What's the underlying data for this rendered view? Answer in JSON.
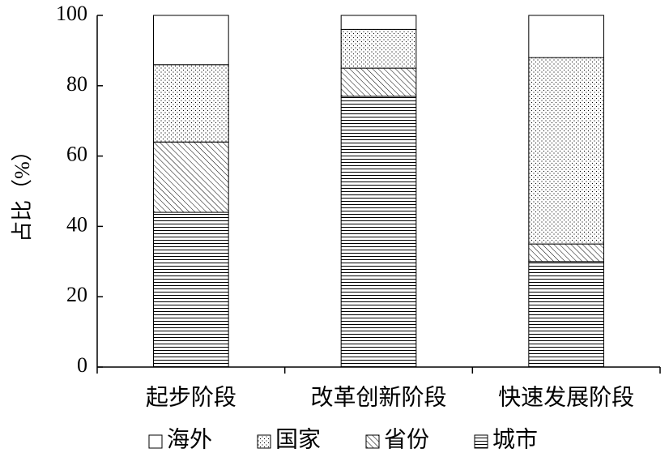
{
  "chart_data": {
    "type": "stacked_bar",
    "y_label": "占比（%）",
    "categories": [
      "起步阶段",
      "改革创新阶段",
      "快速发展阶段"
    ],
    "series": [
      {
        "name": "海外",
        "color": "#ffffff",
        "pattern": "none",
        "values": [
          14,
          4,
          12
        ]
      },
      {
        "name": "国家",
        "color": "#ffffff",
        "pattern": "dots",
        "values": [
          22,
          11,
          53
        ]
      },
      {
        "name": "省份",
        "color": "#ffffff",
        "pattern": "diagonal",
        "values": [
          20,
          8,
          5
        ]
      },
      {
        "name": "城市",
        "color": "#ffffff",
        "pattern": "horizontal",
        "values": [
          44,
          77,
          30
        ]
      }
    ],
    "ylim": [
      0,
      100
    ],
    "yticks": [
      0,
      20,
      40,
      60,
      80,
      100
    ],
    "grid": false,
    "legend": "bottom"
  }
}
